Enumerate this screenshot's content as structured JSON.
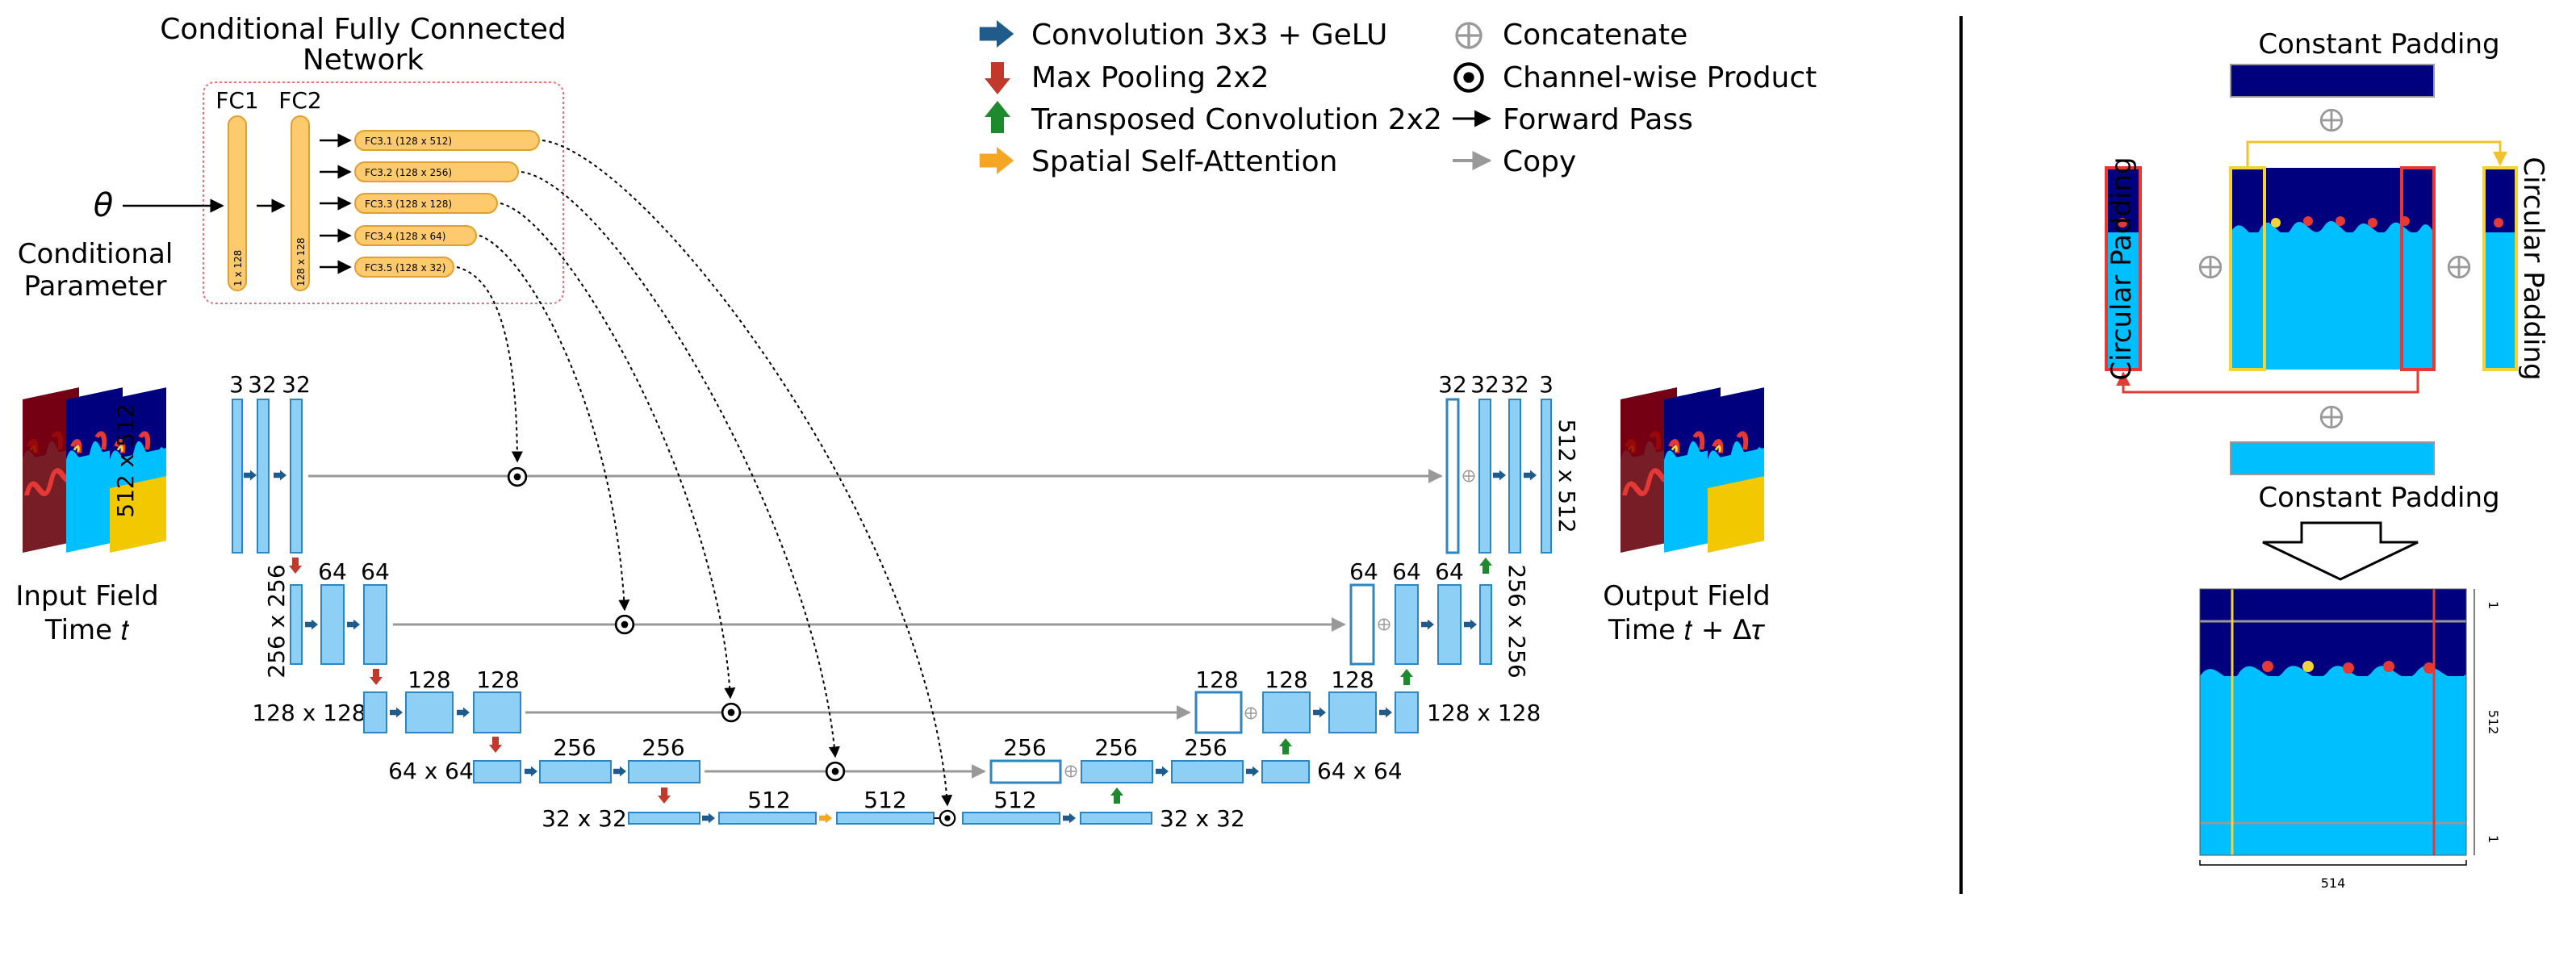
{
  "title": "Conditional U-Net architecture with circular padding",
  "colors": {
    "block": "#8ECFF5",
    "block_stroke": "#2E86C1",
    "fc": "#FDCB6E",
    "fc_stroke": "#E0A030",
    "conv_arrow": "#1F5C8B",
    "pool_arrow": "#C0392B",
    "upconv_arrow": "#1E8A2E",
    "attn_arrow": "#F5A623",
    "copy_arrow": "#999999",
    "deep_blue": "#00007F",
    "light_blue": "#00BFFF",
    "pad_red": "#E53935",
    "pad_yellow": "#F2D33A"
  },
  "fc_network": {
    "title_line1": "Conditional Fully Connected",
    "title_line2": "Network",
    "fc1": "FC1",
    "fc2": "FC2",
    "fc1_dim": "1 x 128",
    "fc2_dim": "128 x 128",
    "fc3": [
      "FC3.1 (128 x 512)",
      "FC3.2 (128 x 256)",
      "FC3.3 (128 x 128)",
      "FC3.4 (128 x 64)",
      "FC3.5 (128 x 32)"
    ],
    "theta": "θ",
    "param_line1": "Conditional",
    "param_line2": "Parameter"
  },
  "legend": {
    "conv": "Convolution 3x3 + GeLU",
    "pool": "Max Pooling 2x2",
    "upconv": "Transposed Convolution 2x2",
    "attn": "Spatial Self-Attention",
    "concat": "Concatenate",
    "product": "Channel-wise Product",
    "forward": "Forward Pass",
    "copy": "Copy"
  },
  "io": {
    "input_line1": "Input Field",
    "input_line2": "Time 𝑡",
    "output_line1": "Output Field",
    "output_line2": "Time 𝑡 + Δ𝜏"
  },
  "unet": {
    "enc1_channels": [
      "3",
      "32",
      "32"
    ],
    "enc2_channels": [
      "64",
      "64"
    ],
    "enc3_channels": [
      "128",
      "128"
    ],
    "enc4_channels": [
      "256",
      "256"
    ],
    "bottleneck_channels": [
      "512",
      "512",
      "512"
    ],
    "dec4_channels": [
      "256",
      "256",
      "256"
    ],
    "dec3_channels": [
      "128",
      "128",
      "128"
    ],
    "dec2_channels": [
      "64",
      "64",
      "64"
    ],
    "dec1_channels": [
      "32",
      "32",
      "32",
      "3"
    ],
    "res1": "512 x 512",
    "res2": "256 x 256",
    "res3": "128 x 128",
    "res4": "64 x 64",
    "res5": "32 x 32"
  },
  "padding": {
    "constant_top": "Constant Padding",
    "constant_bottom": "Constant Padding",
    "circular_left": "Circular Padding",
    "circular_right": "Circular Padding",
    "dim_top": "1",
    "dim_mid": "512",
    "dim_bot": "1",
    "dim_width": "514"
  }
}
